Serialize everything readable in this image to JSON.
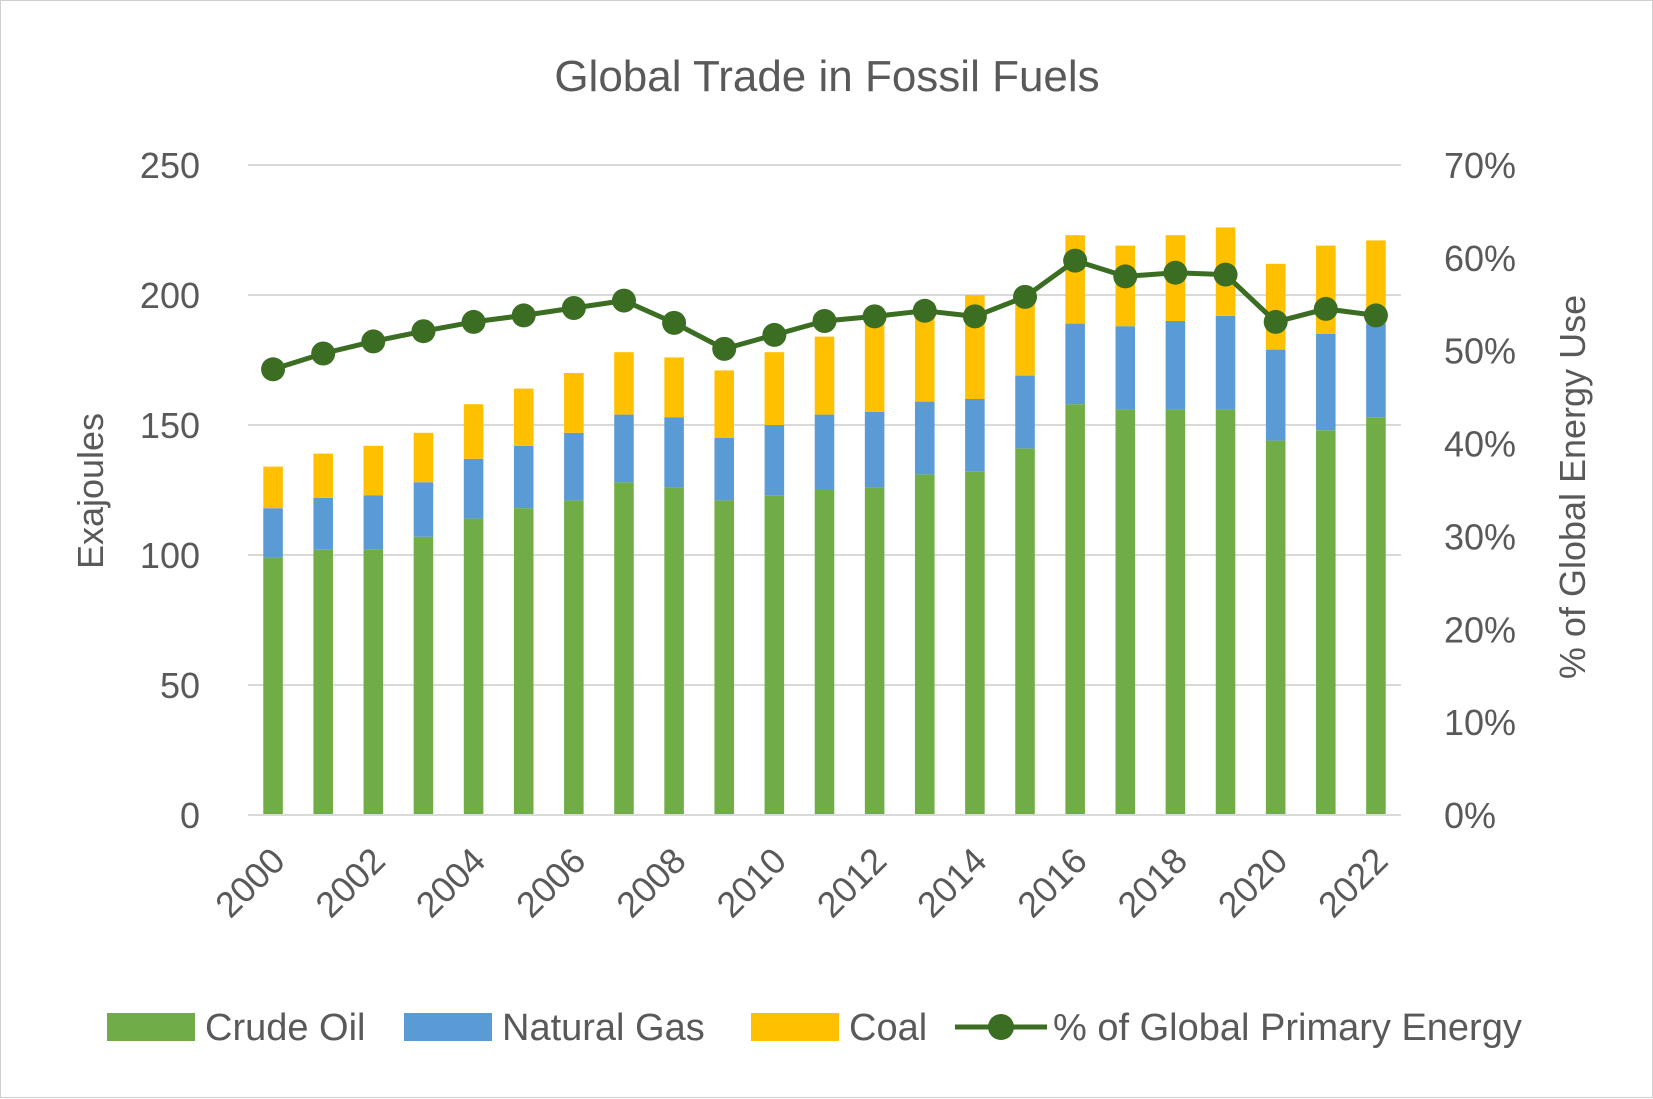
{
  "chart_data": {
    "type": "bar",
    "subtype": "stacked-bar-with-line-secondary-axis",
    "title": "Global Trade in Fossil Fuels",
    "categories": [
      "2000",
      "2001",
      "2002",
      "2003",
      "2004",
      "2005",
      "2006",
      "2007",
      "2008",
      "2009",
      "2010",
      "2011",
      "2012",
      "2013",
      "2014",
      "2015",
      "2016",
      "2017",
      "2018",
      "2019",
      "2020",
      "2021",
      "2022"
    ],
    "x_tick_labels": [
      "2000",
      "2002",
      "2004",
      "2006",
      "2008",
      "2010",
      "2012",
      "2014",
      "2016",
      "2018",
      "2020",
      "2022"
    ],
    "ylabel": "Exajoules",
    "ylim": [
      0,
      250
    ],
    "y_ticks": [
      0,
      50,
      100,
      150,
      200,
      250
    ],
    "y_tick_labels": [
      "0",
      "50",
      "100",
      "150",
      "200",
      "250"
    ],
    "y2label": "% of Global Energy Use",
    "y2lim": [
      0,
      70
    ],
    "y2_ticks": [
      0,
      10,
      20,
      30,
      40,
      50,
      60,
      70
    ],
    "y2_tick_labels": [
      "0%",
      "10%",
      "20%",
      "30%",
      "40%",
      "50%",
      "60%",
      "70%"
    ],
    "grid": true,
    "legend_position": "bottom",
    "series": [
      {
        "name": "Crude Oil",
        "color": "#70ad47",
        "axis": "primary",
        "kind": "bar",
        "values": [
          99,
          102,
          102,
          107,
          114,
          118,
          121,
          128,
          126,
          121,
          123,
          125,
          126,
          131,
          132,
          141,
          158,
          156,
          156,
          156,
          144,
          148,
          153
        ]
      },
      {
        "name": "Natural Gas",
        "color": "#5b9bd5",
        "axis": "primary",
        "kind": "bar",
        "values": [
          19,
          20,
          21,
          21,
          23,
          24,
          26,
          26,
          27,
          24,
          27,
          29,
          29,
          28,
          28,
          28,
          31,
          32,
          34,
          36,
          35,
          37,
          36
        ]
      },
      {
        "name": "Coal",
        "color": "#ffc000",
        "axis": "primary",
        "kind": "bar",
        "values": [
          16,
          17,
          19,
          19,
          21,
          22,
          23,
          24,
          23,
          26,
          28,
          30,
          34,
          38,
          40,
          32,
          34,
          31,
          33,
          34,
          33,
          34,
          32
        ]
      },
      {
        "name": "% of Global Primary Energy",
        "color": "#3b6e22",
        "axis": "secondary",
        "kind": "line",
        "values": [
          48.0,
          49.7,
          51.0,
          52.1,
          53.1,
          53.8,
          54.6,
          55.4,
          53.0,
          50.2,
          51.7,
          53.2,
          53.7,
          54.3,
          53.7,
          55.8,
          59.7,
          58.0,
          58.4,
          58.2,
          53.1,
          54.5,
          53.8
        ]
      }
    ]
  }
}
